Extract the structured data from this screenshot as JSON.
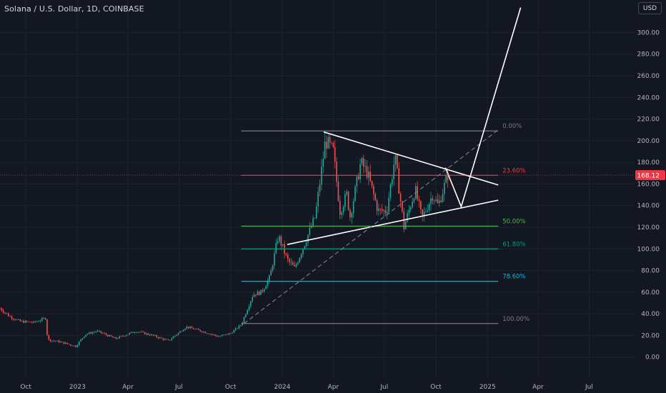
{
  "header": {
    "title": "Solana / U.S. Dollar, 1D, COINBASE",
    "currency": "USD"
  },
  "colors": {
    "bg": "#131722",
    "up": "#26a69a",
    "down": "#ef5350",
    "grid": "#1f2330",
    "text": "#b2b5be",
    "price_line": "#f23645"
  },
  "chart_data": {
    "type": "candlestick",
    "ylim": [
      -20,
      330
    ],
    "y_ticks": [
      0,
      20,
      40,
      60,
      80,
      100,
      120,
      140,
      160,
      180,
      200,
      220,
      240,
      260,
      280,
      300
    ],
    "y_tick_labels": [
      "0.00",
      "20.00",
      "40.00",
      "60.00",
      "80.00",
      "100.00",
      "120.00",
      "140.00",
      "160.00",
      "180.00",
      "200.00",
      "220.00",
      "240.00",
      "260.00",
      "280.00",
      "300.00"
    ],
    "x_ticks": [
      "2022-10-01",
      "2023-01-01",
      "2023-04-01",
      "2023-07-01",
      "2023-10-01",
      "2024-01-01",
      "2024-04-01",
      "2024-07-01",
      "2024-10-01",
      "2025-01-01",
      "2025-04-01",
      "2025-07-01"
    ],
    "x_tick_labels": [
      "Oct",
      "2023",
      "Apr",
      "Jul",
      "Oct",
      "2024",
      "Apr",
      "Jul",
      "Oct",
      "2025",
      "Apr",
      "Jul"
    ],
    "xlim": [
      "2022-08-16",
      "2025-09-20"
    ],
    "current_price": 168.12,
    "current_price_label": "168.12",
    "price_path": [
      [
        "2022-08-16",
        45
      ],
      [
        "2022-09-01",
        38
      ],
      [
        "2022-09-20",
        33
      ],
      [
        "2022-10-15",
        32
      ],
      [
        "2022-11-05",
        36
      ],
      [
        "2022-11-09",
        16
      ],
      [
        "2022-12-01",
        14
      ],
      [
        "2022-12-29",
        10
      ],
      [
        "2023-01-15",
        21
      ],
      [
        "2023-02-05",
        24
      ],
      [
        "2023-03-10",
        17
      ],
      [
        "2023-04-15",
        24
      ],
      [
        "2023-05-15",
        20
      ],
      [
        "2023-06-12",
        15
      ],
      [
        "2023-07-14",
        28
      ],
      [
        "2023-08-10",
        24
      ],
      [
        "2023-09-10",
        19
      ],
      [
        "2023-10-01",
        22
      ],
      [
        "2023-10-20",
        30
      ],
      [
        "2023-11-10",
        58
      ],
      [
        "2023-11-25",
        60
      ],
      [
        "2023-12-10",
        74
      ],
      [
        "2023-12-25",
        112
      ],
      [
        "2024-01-10",
        90
      ],
      [
        "2024-01-23",
        82
      ],
      [
        "2024-02-10",
        105
      ],
      [
        "2024-02-29",
        130
      ],
      [
        "2024-03-18",
        200
      ],
      [
        "2024-04-01",
        190
      ],
      [
        "2024-04-13",
        135
      ],
      [
        "2024-04-25",
        150
      ],
      [
        "2024-05-01",
        130
      ],
      [
        "2024-05-20",
        180
      ],
      [
        "2024-06-01",
        170
      ],
      [
        "2024-06-20",
        135
      ],
      [
        "2024-07-05",
        135
      ],
      [
        "2024-07-20",
        185
      ],
      [
        "2024-08-05",
        120
      ],
      [
        "2024-08-25",
        155
      ],
      [
        "2024-09-06",
        128
      ],
      [
        "2024-09-25",
        150
      ],
      [
        "2024-10-05",
        140
      ],
      [
        "2024-10-14",
        155
      ],
      [
        "2024-10-22",
        168
      ]
    ],
    "fib_levels": [
      {
        "label": "0.00%",
        "price": 209,
        "color": "#787b86"
      },
      {
        "label": "23.60%",
        "price": 168,
        "color": "#f23645"
      },
      {
        "label": "50.00%",
        "price": 121,
        "color": "#4caf50"
      },
      {
        "label": "61.80%",
        "price": 100,
        "color": "#089981"
      },
      {
        "label": "78.60%",
        "price": 70,
        "color": "#00bcd4"
      },
      {
        "label": "100.00%",
        "price": 31,
        "color": "#787b86"
      }
    ],
    "fib_range": [
      "2023-10-20",
      "2025-01-20"
    ],
    "trendlines": [
      {
        "points": [
          [
            "2024-03-15",
            208
          ],
          [
            "2025-01-20",
            159
          ]
        ],
        "color": "#ffffff",
        "style": "solid"
      },
      {
        "points": [
          [
            "2024-01-10",
            104
          ],
          [
            "2025-01-20",
            145
          ]
        ],
        "color": "#ffffff",
        "style": "solid"
      },
      {
        "points": [
          [
            "2023-10-25",
            31
          ],
          [
            "2025-01-20",
            210
          ]
        ],
        "color": "#787b86",
        "style": "dashed"
      },
      {
        "points": [
          [
            "2024-10-18",
            175
          ],
          [
            "2024-11-15",
            139
          ],
          [
            "2025-03-01",
            323
          ]
        ],
        "color": "#ffffff",
        "style": "solid"
      }
    ]
  }
}
